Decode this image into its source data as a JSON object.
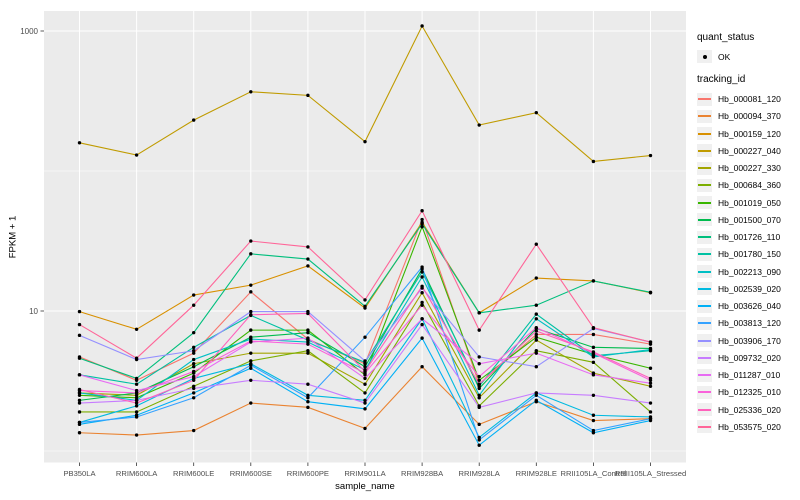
{
  "chart_data": {
    "type": "line",
    "title": "",
    "xlabel": "sample_name",
    "ylabel": "FPKM + 1",
    "y_scale": "log10",
    "y_tick_labels": [
      "10",
      "1000"
    ],
    "y_ticks": [
      10,
      1000
    ],
    "y_minor_gridlines": [
      1,
      100
    ],
    "ylim": [
      0.85,
      1500
    ],
    "grid": true,
    "legend_position": "right",
    "panel_background": "#EBEBEB",
    "gridline_color": "#FFFFFF",
    "tick_label_color": "#4D4D4D",
    "tick_color": "#333333",
    "marker_color": "#000000",
    "categories": [
      "PB350LA",
      "RRIM600LA",
      "RRIM600LE",
      "RRIM600SE",
      "RRIM600PE",
      "RRIM901LA",
      "RRIM928BA",
      "RRIM928LA",
      "RRIM928LE",
      "RRII105LA_Control",
      "RRII105LA_Stressed"
    ],
    "series": [
      {
        "name": "Hb_000081_120",
        "color": "#F8766D",
        "values": [
          4.7,
          3.2,
          5.0,
          13.7,
          6.3,
          4.2,
          45,
          3.0,
          6.8,
          6.8,
          5.8
        ]
      },
      {
        "name": "Hb_000094_370",
        "color": "#EA8331",
        "values": [
          1.35,
          1.3,
          1.4,
          2.2,
          2.05,
          1.45,
          4.0,
          1.55,
          2.25,
          1.65,
          1.7
        ]
      },
      {
        "name": "Hb_000159_120",
        "color": "#D89000",
        "values": [
          9.9,
          7.4,
          13,
          15.3,
          21,
          10.5,
          43,
          9.7,
          17.2,
          16.4,
          13.5
        ]
      },
      {
        "name": "Hb_000227_040",
        "color": "#C09B00",
        "values": [
          159,
          130,
          231,
          368,
          347,
          162,
          1086,
          213,
          261,
          117,
          129
        ]
      },
      {
        "name": "Hb_000227_330",
        "color": "#A3A500",
        "values": [
          2.6,
          2.5,
          4.2,
          5.0,
          5.0,
          3.0,
          13.5,
          2.4,
          6.2,
          3.6,
          2.9
        ]
      },
      {
        "name": "Hb_000684_360",
        "color": "#7CAE00",
        "values": [
          1.9,
          1.9,
          2.9,
          4.4,
          5.2,
          2.6,
          11.5,
          2.1,
          5.2,
          4.3,
          1.9
        ]
      },
      {
        "name": "Hb_001019_050",
        "color": "#39B600",
        "values": [
          2.5,
          2.4,
          3.6,
          7.3,
          7.3,
          3.5,
          40,
          3.2,
          6.5,
          4.9,
          3.9
        ]
      },
      {
        "name": "Hb_001500_070",
        "color": "#00BB4E",
        "values": [
          2.3,
          2.6,
          4.0,
          6.5,
          7.0,
          4.0,
          20,
          2.8,
          7.5,
          5.5,
          5.4
        ]
      },
      {
        "name": "Hb_001726_110",
        "color": "#00BF7D",
        "values": [
          4.6,
          3.3,
          7.0,
          25.6,
          23.5,
          10.8,
          42,
          9.7,
          11.0,
          16.4,
          13.6
        ]
      },
      {
        "name": "Hb_001780_150",
        "color": "#00C1A3",
        "values": [
          3.5,
          3.0,
          5.5,
          9.3,
          6.2,
          4.3,
          19,
          2.9,
          9.5,
          4.8,
          5.2
        ]
      },
      {
        "name": "Hb_002213_090",
        "color": "#00BFC4",
        "values": [
          2.6,
          2.3,
          4.5,
          6.3,
          6.0,
          3.8,
          17.5,
          2.5,
          8.8,
          4.7,
          5.3
        ]
      },
      {
        "name": "Hb_002539_020",
        "color": "#00BAE0",
        "values": [
          1.6,
          2.1,
          3.3,
          4.2,
          2.5,
          2.3,
          8.8,
          1.25,
          2.6,
          1.8,
          1.75
        ]
      },
      {
        "name": "Hb_003626_040",
        "color": "#00B0F6",
        "values": [
          1.55,
          1.8,
          2.6,
          3.9,
          2.25,
          2.0,
          6.4,
          1.1,
          2.3,
          1.35,
          1.65
        ]
      },
      {
        "name": "Hb_003813_120",
        "color": "#35A2FF",
        "values": [
          1.6,
          1.75,
          2.4,
          4.1,
          2.4,
          6.5,
          20.6,
          1.2,
          2.5,
          1.4,
          1.7
        ]
      },
      {
        "name": "Hb_003906_170",
        "color": "#9590FF",
        "values": [
          6.7,
          4.5,
          5.2,
          9.9,
          9.9,
          4.4,
          14.6,
          4.7,
          4.0,
          7.5,
          6.0
        ]
      },
      {
        "name": "Hb_009732_020",
        "color": "#C77CFF",
        "values": [
          2.2,
          2.3,
          2.8,
          3.2,
          3.0,
          2.2,
          8.0,
          2.05,
          2.6,
          2.5,
          2.2
        ]
      },
      {
        "name": "Hb_011287_010",
        "color": "#E76BF3",
        "values": [
          3.5,
          2.7,
          3.4,
          6.0,
          6.4,
          3.3,
          8.8,
          4.2,
          5.0,
          3.5,
          3.05
        ]
      },
      {
        "name": "Hb_012325_010",
        "color": "#FA62DB",
        "values": [
          2.7,
          2.6,
          3.7,
          6.1,
          5.8,
          3.6,
          11.0,
          3.4,
          7.6,
          5.0,
          3.2
        ]
      },
      {
        "name": "Hb_025336_020",
        "color": "#FF62BC",
        "values": [
          2.75,
          2.2,
          3.2,
          9.4,
          9.6,
          3.7,
          15.0,
          3.0,
          7.2,
          5.1,
          3.3
        ]
      },
      {
        "name": "Hb_053575_020",
        "color": "#FF6598",
        "values": [
          8.0,
          4.6,
          11.0,
          31.6,
          28.7,
          12.0,
          52,
          7.3,
          30,
          7.6,
          6.0
        ]
      }
    ]
  },
  "legend": {
    "quant_status_title": "quant_status",
    "quant_status_items": [
      {
        "label": "OK",
        "marker": "point",
        "color": "#000000"
      }
    ],
    "tracking_id_title": "tracking_id"
  }
}
